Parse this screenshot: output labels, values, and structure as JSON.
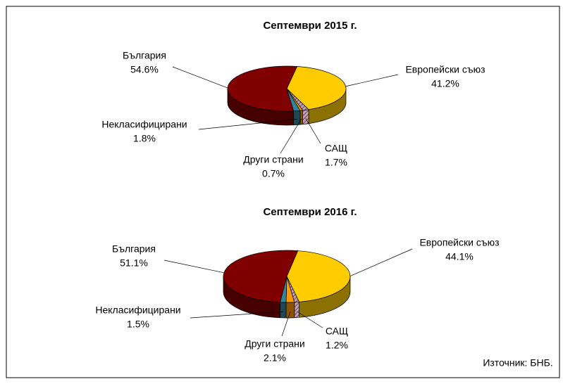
{
  "chart_data": [
    {
      "type": "pie",
      "title": "Септември 2015 г.",
      "categories": [
        "Европейски съюз",
        "САЩ",
        "Други страни",
        "Некласифицирани",
        "България"
      ],
      "values": [
        41.2,
        1.7,
        0.7,
        1.8,
        54.6
      ],
      "value_labels": [
        "41.2%",
        "1.7%",
        "0.7%",
        "1.8%",
        "54.6%"
      ],
      "colors": [
        "#ffcc00",
        "#c8a0b4",
        "#ff9900",
        "#31849b",
        "#800000"
      ]
    },
    {
      "type": "pie",
      "title": "Септември 2016 г.",
      "categories": [
        "Европейски съюз",
        "САЩ",
        "Други страни",
        "Некласифицирани",
        "България"
      ],
      "values": [
        44.1,
        1.2,
        2.1,
        1.5,
        51.1
      ],
      "value_labels": [
        "44.1%",
        "1.2%",
        "2.1%",
        "1.5%",
        "51.1%"
      ],
      "colors": [
        "#ffcc00",
        "#c8a0b4",
        "#ff9900",
        "#31849b",
        "#800000"
      ]
    }
  ],
  "source": "Източник: БНБ."
}
